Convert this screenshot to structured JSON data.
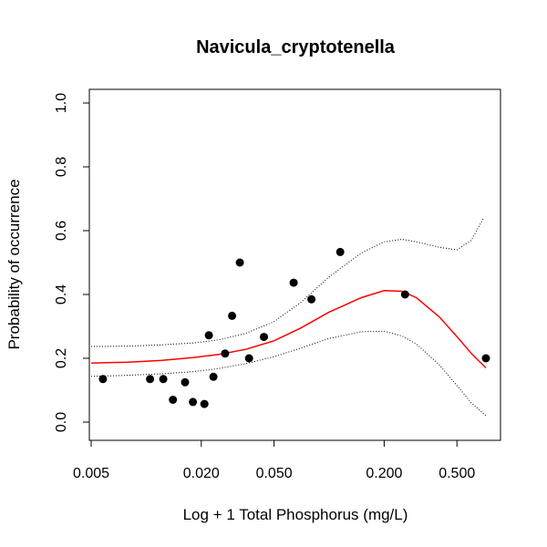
{
  "chart_data": {
    "type": "scatter",
    "title": "Navicula_cryptotenella",
    "xlabel": "Log + 1 Total Phosphorus (mg/L)",
    "ylabel": "Probability of occurrence",
    "x_scale": "log",
    "xlim": [
      0.005,
      0.8
    ],
    "ylim": [
      0.0,
      1.0
    ],
    "x_ticks": [
      0.005,
      0.02,
      0.05,
      0.2,
      0.5
    ],
    "x_tick_labels": [
      "0.005",
      "0.020",
      "0.050",
      "0.200",
      "0.500"
    ],
    "y_ticks": [
      0.0,
      0.2,
      0.4,
      0.6,
      0.8,
      1.0
    ],
    "y_tick_labels": [
      "0.0",
      "0.2",
      "0.4",
      "0.6",
      "0.8",
      "1.0"
    ],
    "grid": false,
    "points": [
      {
        "x": 0.0058,
        "y": 0.135
      },
      {
        "x": 0.0105,
        "y": 0.135
      },
      {
        "x": 0.0124,
        "y": 0.135
      },
      {
        "x": 0.014,
        "y": 0.07
      },
      {
        "x": 0.0163,
        "y": 0.125
      },
      {
        "x": 0.018,
        "y": 0.063
      },
      {
        "x": 0.0208,
        "y": 0.057
      },
      {
        "x": 0.022,
        "y": 0.272
      },
      {
        "x": 0.0233,
        "y": 0.142
      },
      {
        "x": 0.027,
        "y": 0.215
      },
      {
        "x": 0.0295,
        "y": 0.333
      },
      {
        "x": 0.0325,
        "y": 0.5
      },
      {
        "x": 0.0365,
        "y": 0.2
      },
      {
        "x": 0.044,
        "y": 0.267
      },
      {
        "x": 0.064,
        "y": 0.437
      },
      {
        "x": 0.08,
        "y": 0.385
      },
      {
        "x": 0.115,
        "y": 0.533
      },
      {
        "x": 0.26,
        "y": 0.4
      },
      {
        "x": 0.72,
        "y": 0.2
      }
    ],
    "series": [
      {
        "role": "fit",
        "color": "#ff0000",
        "style": "solid",
        "values": [
          {
            "x": 0.005,
            "y": 0.185
          },
          {
            "x": 0.008,
            "y": 0.188
          },
          {
            "x": 0.012,
            "y": 0.193
          },
          {
            "x": 0.018,
            "y": 0.202
          },
          {
            "x": 0.025,
            "y": 0.212
          },
          {
            "x": 0.035,
            "y": 0.228
          },
          {
            "x": 0.05,
            "y": 0.255
          },
          {
            "x": 0.07,
            "y": 0.295
          },
          {
            "x": 0.1,
            "y": 0.345
          },
          {
            "x": 0.15,
            "y": 0.39
          },
          {
            "x": 0.2,
            "y": 0.412
          },
          {
            "x": 0.25,
            "y": 0.41
          },
          {
            "x": 0.3,
            "y": 0.39
          },
          {
            "x": 0.4,
            "y": 0.33
          },
          {
            "x": 0.5,
            "y": 0.268
          },
          {
            "x": 0.6,
            "y": 0.215
          },
          {
            "x": 0.72,
            "y": 0.17
          }
        ]
      },
      {
        "role": "upper-bound",
        "color": "#000000",
        "style": "dotted",
        "values": [
          {
            "x": 0.005,
            "y": 0.237
          },
          {
            "x": 0.008,
            "y": 0.238
          },
          {
            "x": 0.012,
            "y": 0.242
          },
          {
            "x": 0.018,
            "y": 0.248
          },
          {
            "x": 0.025,
            "y": 0.258
          },
          {
            "x": 0.035,
            "y": 0.278
          },
          {
            "x": 0.05,
            "y": 0.315
          },
          {
            "x": 0.07,
            "y": 0.375
          },
          {
            "x": 0.1,
            "y": 0.455
          },
          {
            "x": 0.15,
            "y": 0.53
          },
          {
            "x": 0.2,
            "y": 0.565
          },
          {
            "x": 0.25,
            "y": 0.573
          },
          {
            "x": 0.3,
            "y": 0.565
          },
          {
            "x": 0.4,
            "y": 0.548
          },
          {
            "x": 0.5,
            "y": 0.54
          },
          {
            "x": 0.6,
            "y": 0.57
          },
          {
            "x": 0.7,
            "y": 0.64
          }
        ]
      },
      {
        "role": "lower-bound",
        "color": "#000000",
        "style": "dotted",
        "values": [
          {
            "x": 0.005,
            "y": 0.143
          },
          {
            "x": 0.008,
            "y": 0.147
          },
          {
            "x": 0.012,
            "y": 0.151
          },
          {
            "x": 0.018,
            "y": 0.158
          },
          {
            "x": 0.025,
            "y": 0.168
          },
          {
            "x": 0.035,
            "y": 0.183
          },
          {
            "x": 0.05,
            "y": 0.205
          },
          {
            "x": 0.07,
            "y": 0.232
          },
          {
            "x": 0.1,
            "y": 0.262
          },
          {
            "x": 0.15,
            "y": 0.283
          },
          {
            "x": 0.2,
            "y": 0.285
          },
          {
            "x": 0.25,
            "y": 0.27
          },
          {
            "x": 0.3,
            "y": 0.245
          },
          {
            "x": 0.4,
            "y": 0.18
          },
          {
            "x": 0.5,
            "y": 0.115
          },
          {
            "x": 0.6,
            "y": 0.06
          },
          {
            "x": 0.72,
            "y": 0.02
          }
        ]
      }
    ]
  }
}
